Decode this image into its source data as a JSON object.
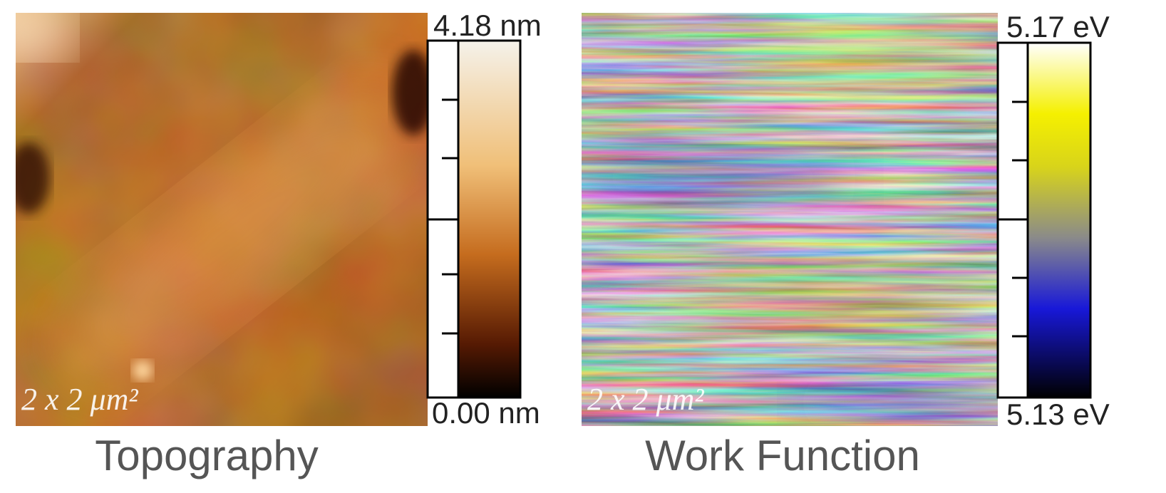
{
  "panels": [
    {
      "title": "Topography",
      "scale_label": "2 x 2 μm²",
      "colorbar": {
        "max_label": "4.18 nm",
        "min_label": "0.00 nm"
      }
    },
    {
      "title": "Work Function",
      "scale_label": "2 x 2 μm²",
      "colorbar": {
        "max_label": "5.17 eV",
        "min_label": "5.13 eV"
      }
    }
  ]
}
